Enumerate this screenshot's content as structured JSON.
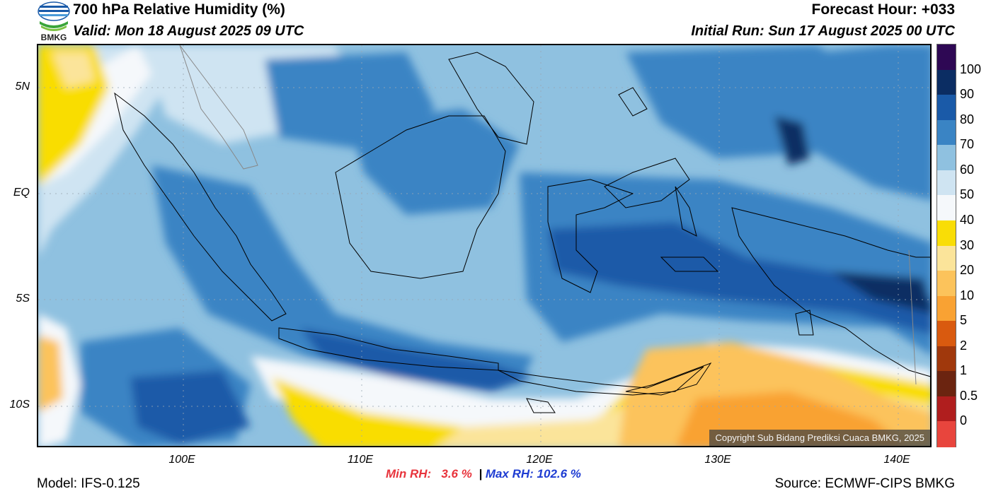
{
  "header": {
    "title": "700 hPa Relative Humidity (%)",
    "valid": "Valid: Mon 18 August 2025 09 UTC",
    "forecast_hour": "Forecast Hour: +033",
    "initial_run": "Initial Run: Sun 17 August 2025 00 UTC"
  },
  "logo": {
    "text": "BMKG",
    "icon": "bmkg-logo-icon"
  },
  "map": {
    "lat_labels": [
      "5N",
      "EQ",
      "5S",
      "10S"
    ],
    "lon_labels": [
      "100E",
      "110E",
      "120E",
      "130E",
      "140E"
    ],
    "copyright": "Copyright Sub Bidang Prediksi Cuaca BMKG, 2025"
  },
  "colorbar": {
    "labels": [
      "100",
      "90",
      "80",
      "70",
      "60",
      "50",
      "40",
      "30",
      "20",
      "10",
      "5",
      "2",
      "1",
      "0.5",
      "0"
    ],
    "colors": [
      "#2e0854",
      "#0b2d63",
      "#1a5aa8",
      "#3a84c4",
      "#8fc1e0",
      "#cfe4f2",
      "#f5f8fb",
      "#f9dd06",
      "#fbe49a",
      "#fcc35b",
      "#f9a233",
      "#d95a0f",
      "#a0380c",
      "#6b2410",
      "#b01e1e",
      "#e8453d"
    ]
  },
  "stats": {
    "min_label": "Min RH:   3.6 %",
    "separator": "|",
    "max_label": "Max RH: 102.6 %"
  },
  "footer": {
    "model": "Model: IFS-0.125",
    "source": "Source: ECMWF-CIPS BMKG"
  }
}
